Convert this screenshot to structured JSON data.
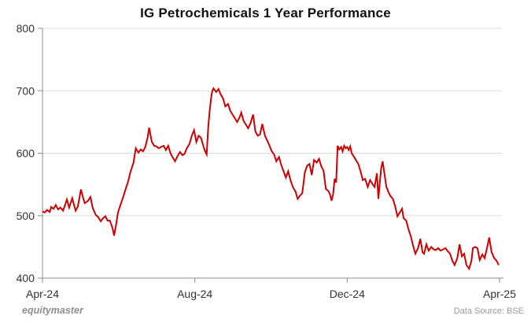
{
  "header": {
    "title": "IG Petrochemicals 1 Year Performance"
  },
  "footer": {
    "brand": "equitymaster",
    "source": "Data Source: BSE"
  },
  "chart_data": {
    "type": "line",
    "title": "IG Petrochemicals 1 Year Performance",
    "xlabel": "",
    "ylabel": "",
    "ylim": [
      400,
      800
    ],
    "xlim_months": [
      0,
      12
    ],
    "y_ticks": [
      400,
      500,
      600,
      700,
      800
    ],
    "x_ticks": [
      {
        "t": 0,
        "label": "Apr-24"
      },
      {
        "t": 4,
        "label": "Aug-24"
      },
      {
        "t": 8,
        "label": "Dec-24"
      },
      {
        "t": 12,
        "label": "Apr-25"
      }
    ],
    "grid": "horizontal",
    "legend": "none",
    "colors": {
      "line": "#cc0000",
      "grid": "#dddddd",
      "axis": "#8c8c8c",
      "tick_label": "#333333",
      "title": "#111111",
      "footer_text": "#9a9a9a"
    },
    "series": [
      {
        "name": "IG Petrochemicals share price",
        "color": "#cc0000",
        "points": [
          [
            0,
            507
          ],
          [
            0.06,
            505
          ],
          [
            0.12,
            509
          ],
          [
            0.19,
            506
          ],
          [
            0.23,
            514
          ],
          [
            0.29,
            511
          ],
          [
            0.35,
            517
          ],
          [
            0.41,
            510
          ],
          [
            0.47,
            513
          ],
          [
            0.54,
            508
          ],
          [
            0.6,
            518
          ],
          [
            0.64,
            526
          ],
          [
            0.7,
            513
          ],
          [
            0.78,
            528
          ],
          [
            0.87,
            508
          ],
          [
            0.93,
            515
          ],
          [
            1.01,
            542
          ],
          [
            1.07,
            528
          ],
          [
            1.11,
            520
          ],
          [
            1.2,
            524
          ],
          [
            1.26,
            530
          ],
          [
            1.32,
            512
          ],
          [
            1.4,
            501
          ],
          [
            1.46,
            498
          ],
          [
            1.53,
            491
          ],
          [
            1.59,
            496
          ],
          [
            1.65,
            499
          ],
          [
            1.71,
            492
          ],
          [
            1.77,
            492
          ],
          [
            1.84,
            480
          ],
          [
            1.88,
            468
          ],
          [
            1.94,
            488
          ],
          [
            1.98,
            505
          ],
          [
            2.04,
            516
          ],
          [
            2.12,
            530
          ],
          [
            2.19,
            544
          ],
          [
            2.25,
            555
          ],
          [
            2.31,
            570
          ],
          [
            2.39,
            585
          ],
          [
            2.45,
            608
          ],
          [
            2.52,
            601
          ],
          [
            2.58,
            606
          ],
          [
            2.64,
            603
          ],
          [
            2.7,
            610
          ],
          [
            2.76,
            625
          ],
          [
            2.8,
            641
          ],
          [
            2.87,
            618
          ],
          [
            2.93,
            612
          ],
          [
            2.99,
            611
          ],
          [
            3.05,
            608
          ],
          [
            3.11,
            610
          ],
          [
            3.18,
            612
          ],
          [
            3.24,
            605
          ],
          [
            3.3,
            612
          ],
          [
            3.36,
            600
          ],
          [
            3.42,
            593
          ],
          [
            3.48,
            587
          ],
          [
            3.55,
            596
          ],
          [
            3.61,
            602
          ],
          [
            3.67,
            597
          ],
          [
            3.73,
            599
          ],
          [
            3.79,
            608
          ],
          [
            3.86,
            615
          ],
          [
            3.92,
            628
          ],
          [
            3.98,
            637
          ],
          [
            4.04,
            618
          ],
          [
            4.1,
            628
          ],
          [
            4.16,
            625
          ],
          [
            4.23,
            610
          ],
          [
            4.27,
            603
          ],
          [
            4.31,
            598
          ],
          [
            4.35,
            640
          ],
          [
            4.39,
            668
          ],
          [
            4.43,
            690
          ],
          [
            4.46,
            700
          ],
          [
            4.49,
            704
          ],
          [
            4.56,
            698
          ],
          [
            4.62,
            703
          ],
          [
            4.68,
            694
          ],
          [
            4.74,
            688
          ],
          [
            4.8,
            675
          ],
          [
            4.87,
            679
          ],
          [
            4.93,
            668
          ],
          [
            4.99,
            662
          ],
          [
            5.05,
            656
          ],
          [
            5.11,
            650
          ],
          [
            5.18,
            658
          ],
          [
            5.22,
            665
          ],
          [
            5.28,
            652
          ],
          [
            5.34,
            646
          ],
          [
            5.4,
            640
          ],
          [
            5.46,
            648
          ],
          [
            5.53,
            662
          ],
          [
            5.59,
            635
          ],
          [
            5.65,
            628
          ],
          [
            5.71,
            630
          ],
          [
            5.77,
            647
          ],
          [
            5.84,
            628
          ],
          [
            5.9,
            620
          ],
          [
            5.96,
            612
          ],
          [
            6.02,
            603
          ],
          [
            6.08,
            598
          ],
          [
            6.14,
            587
          ],
          [
            6.21,
            594
          ],
          [
            6.27,
            581
          ],
          [
            6.33,
            571
          ],
          [
            6.39,
            561
          ],
          [
            6.45,
            571
          ],
          [
            6.52,
            555
          ],
          [
            6.58,
            545
          ],
          [
            6.64,
            539
          ],
          [
            6.7,
            527
          ],
          [
            6.76,
            532
          ],
          [
            6.82,
            536
          ],
          [
            6.89,
            570
          ],
          [
            6.95,
            580
          ],
          [
            7.01,
            583
          ],
          [
            7.07,
            565
          ],
          [
            7.13,
            589
          ],
          [
            7.2,
            585
          ],
          [
            7.26,
            591
          ],
          [
            7.32,
            579
          ],
          [
            7.38,
            572
          ],
          [
            7.44,
            543
          ],
          [
            7.51,
            539
          ],
          [
            7.55,
            534
          ],
          [
            7.59,
            524
          ],
          [
            7.63,
            534
          ],
          [
            7.67,
            559
          ],
          [
            7.71,
            553
          ],
          [
            7.75,
            612
          ],
          [
            7.79,
            606
          ],
          [
            7.84,
            610
          ],
          [
            7.88,
            603
          ],
          [
            7.92,
            612
          ],
          [
            7.96,
            608
          ],
          [
            8,
            610
          ],
          [
            8.04,
            605
          ],
          [
            8.08,
            611
          ],
          [
            8.12,
            600
          ],
          [
            8.16,
            596
          ],
          [
            8.23,
            589
          ],
          [
            8.29,
            583
          ],
          [
            8.35,
            571
          ],
          [
            8.41,
            557
          ],
          [
            8.47,
            559
          ],
          [
            8.54,
            546
          ],
          [
            8.6,
            557
          ],
          [
            8.66,
            551
          ],
          [
            8.72,
            546
          ],
          [
            8.78,
            568
          ],
          [
            8.82,
            527
          ],
          [
            8.89,
            575
          ],
          [
            8.93,
            587
          ],
          [
            8.99,
            562
          ],
          [
            9.03,
            546
          ],
          [
            9.09,
            537
          ],
          [
            9.13,
            532
          ],
          [
            9.2,
            527
          ],
          [
            9.26,
            515
          ],
          [
            9.32,
            499
          ],
          [
            9.38,
            505
          ],
          [
            9.44,
            511
          ],
          [
            9.48,
            496
          ],
          [
            9.55,
            492
          ],
          [
            9.61,
            478
          ],
          [
            9.67,
            467
          ],
          [
            9.73,
            452
          ],
          [
            9.79,
            439
          ],
          [
            9.86,
            448
          ],
          [
            9.92,
            463
          ],
          [
            9.98,
            441
          ],
          [
            10.02,
            439
          ],
          [
            10.08,
            454
          ],
          [
            10.14,
            444
          ],
          [
            10.21,
            450
          ],
          [
            10.27,
            446
          ],
          [
            10.33,
            445
          ],
          [
            10.39,
            448
          ],
          [
            10.45,
            444
          ],
          [
            10.52,
            446
          ],
          [
            10.58,
            448
          ],
          [
            10.64,
            443
          ],
          [
            10.7,
            439
          ],
          [
            10.76,
            428
          ],
          [
            10.82,
            421
          ],
          [
            10.89,
            432
          ],
          [
            10.95,
            454
          ],
          [
            11.01,
            435
          ],
          [
            11.07,
            439
          ],
          [
            11.13,
            421
          ],
          [
            11.2,
            415
          ],
          [
            11.26,
            427
          ],
          [
            11.3,
            448
          ],
          [
            11.36,
            450
          ],
          [
            11.42,
            448
          ],
          [
            11.48,
            429
          ],
          [
            11.55,
            438
          ],
          [
            11.61,
            432
          ],
          [
            11.67,
            448
          ],
          [
            11.73,
            465
          ],
          [
            11.79,
            442
          ],
          [
            11.86,
            432
          ],
          [
            11.92,
            428
          ],
          [
            11.98,
            421
          ]
        ]
      }
    ]
  }
}
